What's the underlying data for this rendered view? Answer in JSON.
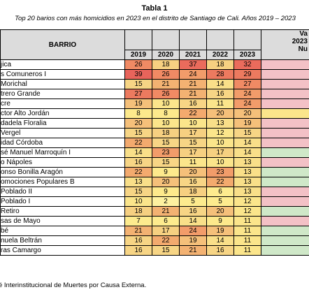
{
  "title": "Tabla 1",
  "subtitle": "Top 20 barios con más homicidios en 2023 en el distrito de Santiago de Cali. Años 2019 – 2023",
  "table": {
    "barrio_header": "BARRIO",
    "var_header_lines": [
      "Va",
      "2023",
      "Nu"
    ],
    "years": [
      "2019",
      "2020",
      "2021",
      "2022",
      "2023"
    ],
    "rows": [
      {
        "name": "jica",
        "values": [
          "26",
          "18",
          "37",
          "18",
          "32"
        ],
        "colors": [
          "#f08a64",
          "#f6d081",
          "#ea6b5c",
          "#f6d081",
          "#ea6b5c"
        ],
        "var_color": "#f3c1c6"
      },
      {
        "name": "s Comuneros I",
        "values": [
          "39",
          "26",
          "24",
          "28",
          "29"
        ],
        "colors": [
          "#e8645b",
          "#f08a64",
          "#f29c6a",
          "#ec7a5f",
          "#ec7a5f"
        ],
        "var_color": "#f3c1c6"
      },
      {
        "name": "Morichal",
        "values": [
          "15",
          "21",
          "21",
          "14",
          "27"
        ],
        "colors": [
          "#f7d585",
          "#f3b272",
          "#f3b272",
          "#f9df89",
          "#f08a64"
        ],
        "var_color": "#f3c1c6"
      },
      {
        "name": "trero Grande",
        "values": [
          "27",
          "26",
          "21",
          "16",
          "24"
        ],
        "colors": [
          "#ec7a5f",
          "#f08a64",
          "#f3b272",
          "#f7d585",
          "#f29c6a"
        ],
        "var_color": "#f3c1c6"
      },
      {
        "name": "cre",
        "values": [
          "19",
          "10",
          "16",
          "11",
          "24"
        ],
        "colors": [
          "#f5c07a",
          "#fbe58b",
          "#f7d585",
          "#fbe58b",
          "#f29c6a"
        ],
        "var_color": "#f3c1c6"
      },
      {
        "name": "ctor Alto Jordán",
        "values": [
          "8",
          "8",
          "22",
          "20",
          "20"
        ],
        "colors": [
          "#fde98c",
          "#fde98c",
          "#f3aa6e",
          "#f5c07a",
          "#f5c07a"
        ],
        "var_color": "#fbe58b"
      },
      {
        "name": "dadela Floralia",
        "values": [
          "20",
          "10",
          "10",
          "13",
          "19"
        ],
        "colors": [
          "#f5c07a",
          "#fbe58b",
          "#fbe58b",
          "#f9df89",
          "#f5c07a"
        ],
        "var_color": "#f3c1c6"
      },
      {
        "name": "Vergel",
        "values": [
          "15",
          "18",
          "17",
          "12",
          "15"
        ],
        "colors": [
          "#f7d585",
          "#f6d081",
          "#f6d081",
          "#fbe58b",
          "#f7d585"
        ],
        "var_color": "#f3c1c6"
      },
      {
        "name": "idad Córdoba",
        "values": [
          "22",
          "15",
          "15",
          "10",
          "14"
        ],
        "colors": [
          "#f3aa6e",
          "#f7d585",
          "#f7d585",
          "#fbe58b",
          "#f9df89"
        ],
        "var_color": "#f3c1c6"
      },
      {
        "name": "sé Manuel Marroquín I",
        "values": [
          "14",
          "23",
          "17",
          "17",
          "14"
        ],
        "colors": [
          "#f9df89",
          "#f29c6a",
          "#f6d081",
          "#f6d081",
          "#f9df89"
        ],
        "var_color": "#cfe8c8"
      },
      {
        "name": "o Nápoles",
        "values": [
          "16",
          "15",
          "11",
          "10",
          "13"
        ],
        "colors": [
          "#f7d585",
          "#f7d585",
          "#fbe58b",
          "#fbe58b",
          "#f9df89"
        ],
        "var_color": "#f3c1c6"
      },
      {
        "name": "onso Bonilla Aragón",
        "values": [
          "22",
          "9",
          "20",
          "23",
          "13"
        ],
        "colors": [
          "#f3aa6e",
          "#fde98c",
          "#f5c07a",
          "#f29c6a",
          "#f9df89"
        ],
        "var_color": "#cfe8c8"
      },
      {
        "name": "omociones Populares B",
        "values": [
          "13",
          "20",
          "16",
          "22",
          "13"
        ],
        "colors": [
          "#f9df89",
          "#f5c07a",
          "#f7d585",
          "#f3aa6e",
          "#f9df89"
        ],
        "var_color": "#cfe8c8"
      },
      {
        "name": "Poblado II",
        "values": [
          "15",
          "9",
          "18",
          "6",
          "13"
        ],
        "colors": [
          "#f7d585",
          "#fde98c",
          "#f6d081",
          "#fdeb8e",
          "#f9df89"
        ],
        "var_color": "#f3c1c6"
      },
      {
        "name": "Poblado I",
        "values": [
          "10",
          "2",
          "5",
          "5",
          "12"
        ],
        "colors": [
          "#fbe58b",
          "#fef1a0",
          "#fdeb8e",
          "#fdeb8e",
          "#fbe58b"
        ],
        "var_color": "#f3c1c6"
      },
      {
        "name": "Retiro",
        "values": [
          "18",
          "21",
          "16",
          "20",
          "12"
        ],
        "colors": [
          "#f6d081",
          "#f3b272",
          "#f7d585",
          "#f5c07a",
          "#fbe58b"
        ],
        "var_color": "#cfe8c8"
      },
      {
        "name": "sas de Mayo",
        "values": [
          "7",
          "6",
          "14",
          "9",
          "11"
        ],
        "colors": [
          "#fdeb8e",
          "#fdeb8e",
          "#f9df89",
          "#fde98c",
          "#fbe58b"
        ],
        "var_color": "#f3c1c6"
      },
      {
        "name": "bé",
        "values": [
          "21",
          "17",
          "24",
          "19",
          "11"
        ],
        "colors": [
          "#f3b272",
          "#f6d081",
          "#f29c6a",
          "#f5c07a",
          "#fbe58b"
        ],
        "var_color": "#cfe8c8"
      },
      {
        "name": "nuela Beltrán",
        "values": [
          "16",
          "22",
          "19",
          "14",
          "11"
        ],
        "colors": [
          "#f7d585",
          "#f3aa6e",
          "#f5c07a",
          "#f9df89",
          "#fbe58b"
        ],
        "var_color": "#cfe8c8"
      },
      {
        "name": "ras Camargo",
        "values": [
          "16",
          "15",
          "21",
          "16",
          "11"
        ],
        "colors": [
          "#f7d585",
          "#f7d585",
          "#f3b272",
          "#f7d585",
          "#fbe58b"
        ],
        "var_color": "#cfe8c8"
      }
    ]
  },
  "footnote": "é Interinstitucional de Muertes por Causa Externa."
}
